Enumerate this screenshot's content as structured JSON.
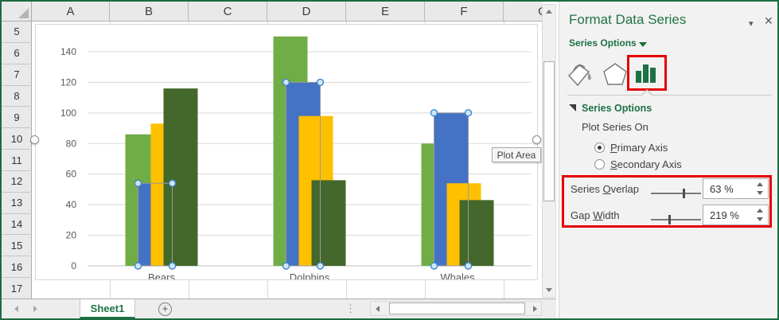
{
  "spreadsheet": {
    "column_headers": [
      "A",
      "B",
      "C",
      "D",
      "E",
      "F",
      "G"
    ],
    "row_headers": [
      "5",
      "6",
      "7",
      "8",
      "9",
      "10",
      "11",
      "12",
      "13",
      "14",
      "15",
      "16",
      "17"
    ],
    "active_sheet_tab": "Sheet1"
  },
  "icons": {
    "pane_dropdown": "▾",
    "pane_close": "✕",
    "add_sheet": "+",
    "tab_dots": "⋮"
  },
  "tooltip": {
    "text": "Plot Area"
  },
  "chart_data": {
    "type": "bar",
    "categories": [
      "Bears",
      "Dolphins",
      "Whales"
    ],
    "series": [
      {
        "color": "#70AD47",
        "values": [
          86,
          150,
          80
        ],
        "selected": false
      },
      {
        "color": "#4472C4",
        "values": [
          54,
          120,
          100
        ],
        "selected": true
      },
      {
        "color": "#FFC000",
        "values": [
          93,
          98,
          54
        ],
        "selected": false
      },
      {
        "color": "#44682B",
        "values": [
          116,
          56,
          43
        ],
        "selected": false
      }
    ],
    "ylim": [
      0,
      140
    ],
    "yticks": [
      0,
      20,
      40,
      60,
      80,
      100,
      120,
      140
    ],
    "grid": true,
    "legend": "none",
    "gridline_color": "#d9d9d9",
    "axis_color": "#bfbfbf",
    "label_color": "#595959",
    "selection_handle_fill": "#cfe6f7",
    "selection_handle_stroke": "#3e87c9"
  },
  "panel": {
    "title": "Format Data Series",
    "selector_label": "Series Options",
    "tab_icons": [
      "fill-line-bucket-icon",
      "effects-pentagon-icon",
      "series-options-chart-icon"
    ],
    "section_title": "Series Options",
    "plot_series_on_label": "Plot Series On",
    "primary_axis": {
      "pre": "",
      "u": "P",
      "post": "rimary Axis",
      "selected": true
    },
    "secondary_axis": {
      "pre": "",
      "u": "S",
      "post": "econdary Axis",
      "selected": false
    },
    "series_overlap": {
      "pre": "Series ",
      "u": "O",
      "post": "verlap",
      "value": "63 %"
    },
    "gap_width": {
      "pre": "Gap ",
      "u": "W",
      "post": "idth",
      "value": "219 %"
    },
    "accent_green": "#217346",
    "annotation_red": "#e40000"
  }
}
